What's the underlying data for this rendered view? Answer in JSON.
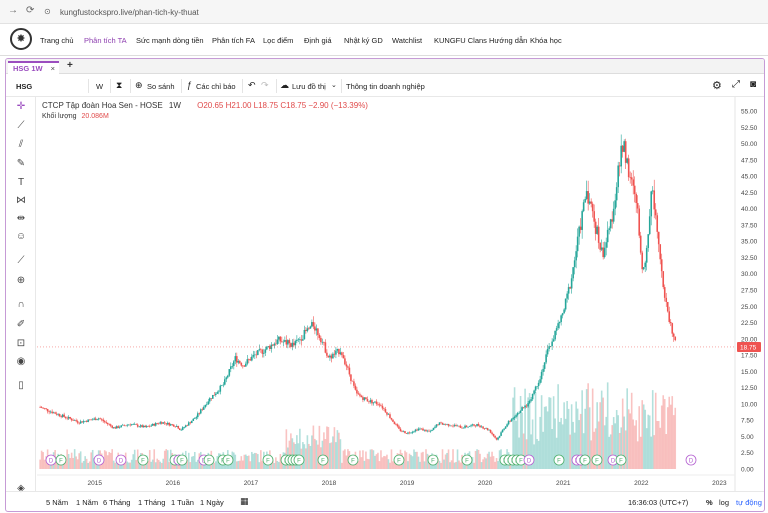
{
  "browser": {
    "url": "kungfustockspro.live/phan-tich-ky-thuat"
  },
  "site_nav": {
    "items": [
      "Trang chủ",
      "Phân tích TA",
      "Sức mạnh dòng tiền",
      "Phân tích FA",
      "Lọc điểm",
      "Định giá",
      "Nhật ký GD",
      "Watchlist",
      "KUNGFU Clans",
      "Hướng dẫn",
      "Khóa học"
    ],
    "active": "Phân tích TA"
  },
  "tab": {
    "label": "HSG 1W",
    "close": "×",
    "add": "+"
  },
  "toolbar": {
    "symbol": "HSG",
    "interval": "W",
    "compare": "So sánh",
    "indicators": "Các chỉ báo",
    "save": "Lưu đồ thị",
    "company_info": "Thông tin doanh nghiệp"
  },
  "legend": {
    "title": "CTCP Tập đoàn Hoa Sen - HOSE",
    "interval": "1W",
    "open": "O20.65",
    "high": "H21.00",
    "low": "L18.75",
    "close": "C18.75",
    "change": "−2.90 (−13.39%)",
    "volume_label": "Khối lượng",
    "volume_value": "20.086M"
  },
  "chart_data": {
    "type": "candlestick",
    "symbol": "HSG",
    "interval": "1W",
    "x_axis_labels": [
      "2015",
      "2016",
      "2017",
      "2018",
      "2019",
      "2020",
      "2021",
      "2022",
      "2023"
    ],
    "y_axis_labels": [
      "55.00",
      "52.50",
      "50.00",
      "47.50",
      "45.00",
      "42.50",
      "40.00",
      "37.50",
      "35.00",
      "32.50",
      "30.00",
      "27.50",
      "25.00",
      "22.50",
      "20.00",
      "17.50",
      "15.00",
      "12.50",
      "10.00",
      "7.50",
      "5.00",
      "2.50",
      "0.00"
    ],
    "ylim": [
      0,
      55
    ],
    "last_price": "18.75",
    "price_path": [
      [
        2014.35,
        9.5
      ],
      [
        2014.6,
        8.3
      ],
      [
        2014.85,
        7.2
      ],
      [
        2015.1,
        7.8
      ],
      [
        2015.3,
        6.3
      ],
      [
        2015.5,
        6.9
      ],
      [
        2015.7,
        6.4
      ],
      [
        2015.9,
        7.2
      ],
      [
        2016.1,
        6.6
      ],
      [
        2016.15,
        6.0
      ],
      [
        2016.35,
        8.0
      ],
      [
        2016.5,
        10.5
      ],
      [
        2016.7,
        13.0
      ],
      [
        2016.85,
        17.0
      ],
      [
        2016.95,
        16.0
      ],
      [
        2017.1,
        17.5
      ],
      [
        2017.25,
        18.5
      ],
      [
        2017.4,
        19.8
      ],
      [
        2017.6,
        19.0
      ],
      [
        2017.75,
        21.0
      ],
      [
        2017.85,
        22.2
      ],
      [
        2017.95,
        20.0
      ],
      [
        2018.05,
        17.0
      ],
      [
        2018.2,
        18.3
      ],
      [
        2018.3,
        15.0
      ],
      [
        2018.4,
        11.5
      ],
      [
        2018.55,
        10.5
      ],
      [
        2018.7,
        10.0
      ],
      [
        2018.8,
        8.5
      ],
      [
        2018.95,
        6.0
      ],
      [
        2019.05,
        5.5
      ],
      [
        2019.2,
        6.2
      ],
      [
        2019.35,
        5.7
      ],
      [
        2019.45,
        7.0
      ],
      [
        2019.6,
        6.8
      ],
      [
        2019.75,
        6.4
      ],
      [
        2019.95,
        6.8
      ],
      [
        2020.1,
        6.0
      ],
      [
        2020.2,
        4.5
      ],
      [
        2020.3,
        6.5
      ],
      [
        2020.45,
        8.5
      ],
      [
        2020.6,
        10.0
      ],
      [
        2020.75,
        14.0
      ],
      [
        2020.85,
        18.0
      ],
      [
        2020.95,
        21.0
      ],
      [
        2021.05,
        24.0
      ],
      [
        2021.15,
        29.0
      ],
      [
        2021.25,
        36.0
      ],
      [
        2021.35,
        43.0
      ],
      [
        2021.45,
        38.0
      ],
      [
        2021.55,
        33.0
      ],
      [
        2021.65,
        37.0
      ],
      [
        2021.75,
        45.0
      ],
      [
        2021.82,
        50.5
      ],
      [
        2021.9,
        45.0
      ],
      [
        2022.0,
        40.0
      ],
      [
        2022.05,
        31.0
      ],
      [
        2022.12,
        33.0
      ],
      [
        2022.18,
        43.5
      ],
      [
        2022.25,
        38.0
      ],
      [
        2022.35,
        26.0
      ],
      [
        2022.45,
        21.0
      ],
      [
        2022.5,
        18.75
      ]
    ],
    "volume_axis_note": "volume bars along bottom"
  },
  "events": {
    "labels": [
      "D",
      "F",
      "D",
      "D",
      "F",
      "F",
      "D",
      "F",
      "D",
      "F",
      "F",
      "F",
      "F",
      "F",
      "F",
      "F",
      "F",
      "F",
      "F",
      "F",
      "F",
      "F",
      "F",
      "F",
      "F",
      "F",
      "F",
      "F"
    ]
  },
  "bottom": {
    "ranges": [
      "5 Năm",
      "1 Năm",
      "6 Tháng",
      "1 Tháng",
      "1 Tuần",
      "1 Ngày"
    ],
    "time": "16:36:03 (UTC+7)",
    "percent": "%",
    "log": "log",
    "auto": "tự động"
  },
  "colors": {
    "up": "#26a69a",
    "down": "#ef5350",
    "accent": "#9b4dbf",
    "last_price": "#ef5350"
  }
}
